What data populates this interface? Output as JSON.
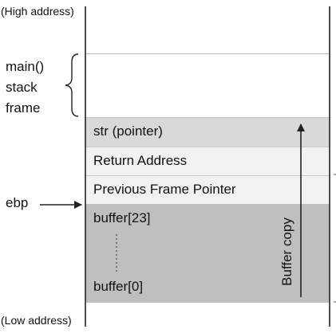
{
  "labels": {
    "high_address": "(High address)",
    "low_address": "(Low address)",
    "main_frame": [
      "main()",
      "stack",
      "frame"
    ],
    "ebp": "ebp",
    "buffer_copy": "Buffer copy"
  },
  "stack": {
    "str": "str (pointer)",
    "return_address": "Return Address",
    "previous_frame_pointer": "Previous Frame Pointer",
    "buffer_top": "buffer[23]",
    "buffer_bottom": "buffer[0]"
  },
  "colors": {
    "line": "#222222",
    "cell_border": "#bdbdbd",
    "str_fill": "#d9d9d9",
    "light_fill": "#f2f2f2",
    "buffer_fill": "#bfbfbf"
  }
}
